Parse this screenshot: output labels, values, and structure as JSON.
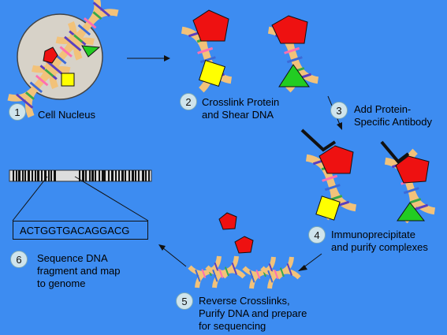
{
  "steps": [
    {
      "num": "1",
      "label": "Cell Nucleus"
    },
    {
      "num": "2",
      "label": "Crosslink Protein\nand Shear DNA"
    },
    {
      "num": "3",
      "label": "Add Protein-\nSpecific Antibody"
    },
    {
      "num": "4",
      "label": "Immunoprecipitate\nand purify complexes"
    },
    {
      "num": "5",
      "label": "Reverse Crosslinks,\nPurify DNA and prepare\nfor sequencing"
    },
    {
      "num": "6",
      "label": "Sequence DNA\nfragment and map\nto genome"
    }
  ],
  "sequence": "ACTGGTGACAGGACG",
  "colors": {
    "background": "#3d8cf1",
    "protein_red": "#ee1111",
    "protein_yellow": "#ffff00",
    "protein_green": "#22cc22",
    "dna_backbone": "#f2c27a",
    "nucleus": "#d7d2c8"
  }
}
